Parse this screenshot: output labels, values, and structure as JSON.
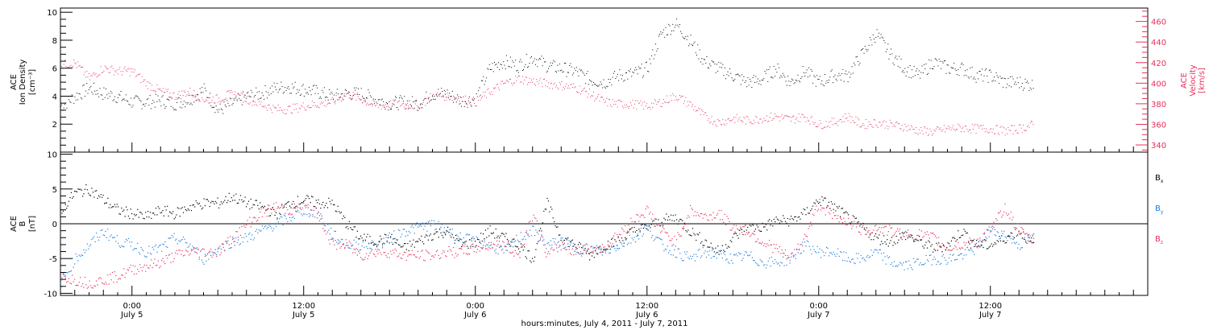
{
  "colors": {
    "density": "#000000",
    "velocity": "#e8305a",
    "bx": "#000000",
    "by": "#1a7fe0",
    "bz": "#e8305a"
  },
  "xaxis": {
    "title": "hours:minutes, July  4, 2011 - July  7, 2011",
    "ticks": [
      {
        "t": 24,
        "time": "0:00",
        "day": "July 5"
      },
      {
        "t": 36,
        "time": "12:00",
        "day": "July 5"
      },
      {
        "t": 48,
        "time": "0:00",
        "day": "July 6"
      },
      {
        "t": 60,
        "time": "12:00",
        "day": "July 6"
      },
      {
        "t": 72,
        "time": "0:00",
        "day": "July 7"
      },
      {
        "t": 84,
        "time": "12:00",
        "day": "July 7"
      }
    ]
  },
  "panel1": {
    "ylabel_left": [
      "ACE",
      "Ion Density",
      "[cm⁻³]"
    ],
    "ylabel_right": [
      "ACE",
      "Velocity",
      "[km/s]"
    ],
    "left_ticks": [
      "10",
      "8",
      "6",
      "4",
      "2"
    ],
    "right_ticks": [
      "460",
      "440",
      "420",
      "400",
      "380",
      "360",
      "340"
    ]
  },
  "panel2": {
    "ylabel": [
      "ACE",
      "B",
      "[nT]"
    ],
    "ticks": [
      "10",
      "5",
      "0",
      "-5",
      "-10"
    ],
    "legend": [
      {
        "base": "B",
        "sub": "x",
        "color": "#000000"
      },
      {
        "base": "B",
        "sub": "y",
        "color": "#1a7fe0"
      },
      {
        "base": "B",
        "sub": "z",
        "color": "#e8305a"
      }
    ]
  },
  "chart_data": [
    {
      "type": "scatter",
      "x_unit": "hours since July 4, 2011 00:00",
      "xlim": [
        19,
        95
      ],
      "y_left_lim": [
        0,
        10.3
      ],
      "y_right_lim": [
        333,
        473
      ],
      "series": [
        {
          "name": "ACE Ion Density",
          "axis": "left",
          "unit": "cm^-3",
          "x": [
            19,
            20,
            21,
            22,
            23,
            24,
            25,
            26,
            27,
            28,
            29,
            30,
            31,
            32,
            33,
            34,
            35,
            36,
            37,
            38,
            39,
            40,
            41,
            42,
            43,
            44,
            45,
            46,
            47,
            48,
            49,
            50,
            51,
            52,
            53,
            54,
            55,
            56,
            57,
            58,
            59,
            60,
            61,
            62,
            63,
            64,
            65,
            66,
            67,
            68,
            69,
            70,
            71,
            72,
            73,
            74,
            75,
            76,
            77,
            78,
            79,
            80,
            81,
            82,
            83,
            84,
            85,
            86,
            87
          ],
          "y": [
            3.3,
            4.0,
            4.6,
            4.2,
            4.0,
            3.6,
            3.6,
            3.7,
            3.5,
            3.8,
            4.5,
            3.0,
            3.5,
            4.0,
            4.2,
            4.6,
            4.7,
            4.5,
            4.3,
            4.0,
            4.2,
            4.2,
            3.8,
            3.5,
            3.6,
            3.5,
            4.2,
            4.2,
            3.7,
            3.8,
            6.0,
            6.5,
            6.2,
            6.8,
            6.2,
            6.0,
            5.8,
            5.2,
            5.0,
            5.5,
            5.6,
            6.0,
            8.5,
            9.2,
            8.0,
            6.5,
            6.0,
            5.5,
            5.0,
            5.2,
            6.0,
            5.0,
            5.8,
            5.0,
            5.5,
            5.5,
            7.0,
            8.5,
            7.0,
            6.0,
            5.5,
            6.5,
            6.0,
            6.0,
            5.5,
            5.5,
            5.0,
            5.0,
            4.8
          ]
        },
        {
          "name": "ACE Velocity",
          "axis": "right",
          "unit": "km/s",
          "x": [
            19,
            20,
            21,
            22,
            23,
            24,
            25,
            26,
            27,
            28,
            29,
            30,
            31,
            32,
            33,
            34,
            35,
            36,
            37,
            38,
            39,
            40,
            41,
            42,
            43,
            44,
            45,
            46,
            47,
            48,
            49,
            50,
            51,
            52,
            53,
            54,
            55,
            56,
            57,
            58,
            59,
            60,
            61,
            62,
            63,
            64,
            65,
            66,
            67,
            68,
            69,
            70,
            71,
            72,
            73,
            74,
            75,
            76,
            77,
            78,
            79,
            80,
            81,
            82,
            83,
            84,
            85,
            86,
            87
          ],
          "y": [
            418,
            420,
            405,
            415,
            412,
            412,
            400,
            392,
            388,
            392,
            385,
            385,
            390,
            385,
            380,
            375,
            375,
            378,
            380,
            382,
            390,
            385,
            378,
            380,
            380,
            378,
            388,
            388,
            385,
            382,
            392,
            400,
            405,
            402,
            400,
            398,
            396,
            390,
            382,
            380,
            380,
            378,
            382,
            388,
            380,
            368,
            362,
            366,
            364,
            366,
            368,
            365,
            368,
            360,
            362,
            368,
            360,
            362,
            360,
            358,
            354,
            353,
            356,
            357,
            356,
            356,
            354,
            356,
            360
          ]
        }
      ]
    },
    {
      "type": "scatter",
      "x_unit": "hours since July 4, 2011 00:00",
      "xlim": [
        19,
        95
      ],
      "ylim": [
        -10.3,
        10.3
      ],
      "series": [
        {
          "name": "Bx",
          "x": [
            19,
            20,
            21,
            22,
            23,
            24,
            25,
            26,
            27,
            28,
            29,
            30,
            31,
            32,
            33,
            34,
            35,
            36,
            37,
            38,
            39,
            40,
            41,
            42,
            43,
            44,
            45,
            46,
            47,
            48,
            49,
            50,
            51,
            52,
            53,
            54,
            55,
            56,
            57,
            58,
            59,
            60,
            61,
            62,
            63,
            64,
            65,
            66,
            67,
            68,
            69,
            70,
            71,
            72,
            73,
            74,
            75,
            76,
            77,
            78,
            79,
            80,
            81,
            82,
            83,
            84,
            85,
            86,
            87
          ],
          "y": [
            2.0,
            4.5,
            5.0,
            3.5,
            2.0,
            1.5,
            1.0,
            2.0,
            1.5,
            2.5,
            3.0,
            3.0,
            4.0,
            3.0,
            2.5,
            1.5,
            3.0,
            3.5,
            3.0,
            3.0,
            0.0,
            -2.0,
            -2.5,
            -2.0,
            -3.5,
            -2.5,
            -1.5,
            -1.0,
            -3.0,
            -2.5,
            -1.0,
            -2.0,
            -3.0,
            -5.0,
            3.0,
            -2.0,
            -3.0,
            -4.5,
            -3.0,
            -2.5,
            -1.0,
            -0.5,
            0.5,
            1.0,
            -1.0,
            -2.5,
            -4.0,
            -2.0,
            -0.5,
            -0.5,
            0.5,
            0.5,
            1.5,
            3.5,
            2.5,
            1.0,
            -0.5,
            -2.0,
            -2.5,
            -1.5,
            -2.5,
            -3.5,
            -3.0,
            -1.0,
            -3.0,
            -3.0,
            -2.0,
            -1.0,
            -3.0
          ]
        },
        {
          "name": "By",
          "x": [
            19,
            20,
            21,
            22,
            23,
            24,
            25,
            26,
            27,
            28,
            29,
            30,
            31,
            32,
            33,
            34,
            35,
            36,
            37,
            38,
            39,
            40,
            41,
            42,
            43,
            44,
            45,
            46,
            47,
            48,
            49,
            50,
            51,
            52,
            53,
            54,
            55,
            56,
            57,
            58,
            59,
            60,
            61,
            62,
            63,
            64,
            65,
            66,
            67,
            68,
            69,
            70,
            71,
            72,
            73,
            74,
            75,
            76,
            77,
            78,
            79,
            80,
            81,
            82,
            83,
            84,
            85,
            86,
            87
          ],
          "y": [
            -8.5,
            -5.0,
            -3.0,
            -1.0,
            -2.5,
            -3.0,
            -4.0,
            -3.5,
            -2.0,
            -3.0,
            -5.0,
            -3.5,
            -2.5,
            -2.0,
            -1.0,
            0.0,
            1.0,
            2.0,
            1.5,
            -1.5,
            -3.0,
            -3.0,
            -3.0,
            -2.0,
            -1.0,
            -0.5,
            0.0,
            -1.0,
            -2.0,
            -2.5,
            -3.0,
            -4.0,
            -2.0,
            -1.0,
            -3.0,
            -2.5,
            -3.5,
            -3.5,
            -4.0,
            -3.0,
            -2.0,
            -0.5,
            -3.0,
            -4.0,
            -5.0,
            -4.0,
            -4.5,
            -5.0,
            -4.5,
            -5.5,
            -5.5,
            -5.0,
            -3.0,
            -4.0,
            -4.0,
            -5.0,
            -5.0,
            -4.0,
            -5.5,
            -6.0,
            -5.5,
            -5.0,
            -5.0,
            -4.5,
            -3.5,
            -1.0,
            -1.5,
            -3.0,
            -2.0
          ]
        },
        {
          "name": "Bz",
          "x": [
            19,
            20,
            21,
            22,
            23,
            24,
            25,
            26,
            27,
            28,
            29,
            30,
            31,
            32,
            33,
            34,
            35,
            36,
            37,
            38,
            39,
            40,
            41,
            42,
            43,
            44,
            45,
            46,
            47,
            48,
            49,
            50,
            51,
            52,
            53,
            54,
            55,
            56,
            57,
            58,
            59,
            60,
            61,
            62,
            63,
            64,
            65,
            66,
            67,
            68,
            69,
            70,
            71,
            72,
            73,
            74,
            75,
            76,
            77,
            78,
            79,
            80,
            81,
            82,
            83,
            84,
            85,
            86,
            87
          ],
          "y": [
            -7.5,
            -8.0,
            -8.5,
            -8.0,
            -7.5,
            -6.5,
            -6.0,
            -5.5,
            -4.5,
            -4.0,
            -4.0,
            -4.0,
            -2.0,
            0.0,
            1.5,
            2.5,
            2.0,
            2.5,
            1.5,
            -3.0,
            -3.0,
            -4.5,
            -4.0,
            -4.0,
            -4.5,
            -4.5,
            -4.5,
            -4.0,
            -4.0,
            -3.5,
            -3.0,
            -3.0,
            -4.5,
            1.5,
            -4.5,
            -3.0,
            -4.0,
            -3.5,
            -3.5,
            -1.5,
            0.5,
            2.0,
            -1.0,
            -2.5,
            2.0,
            1.0,
            1.5,
            -0.5,
            -1.0,
            -2.5,
            -3.5,
            -5.0,
            -2.0,
            3.0,
            1.0,
            0.5,
            -1.0,
            -0.5,
            -1.0,
            -1.5,
            -1.5,
            -2.0,
            -3.5,
            -3.0,
            -2.5,
            -1.0,
            2.5,
            -1.0,
            -2.5
          ]
        }
      ]
    }
  ]
}
